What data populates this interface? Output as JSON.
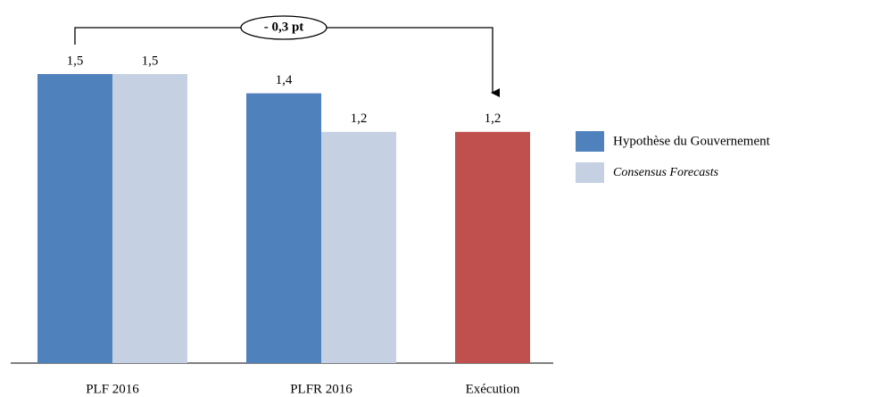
{
  "chart_data": {
    "type": "bar",
    "categories": [
      "PLF 2016",
      "PLFR 2016",
      "Exécution"
    ],
    "series": [
      {
        "name": "Hypothèse du Gouvernement",
        "color": "#4f81bd",
        "values": [
          1.5,
          1.4,
          null
        ],
        "value_labels": [
          "1,5",
          "1,4",
          null
        ]
      },
      {
        "name": "Consensus Forecasts",
        "color": "#c5d0e3",
        "values": [
          1.5,
          1.2,
          null
        ],
        "value_labels": [
          "1,5",
          "1,2",
          null
        ]
      }
    ],
    "execution": {
      "value": 1.2,
      "value_label": "1,2",
      "color": "#c0504d"
    },
    "annotation": "- 0,3 pt",
    "legend": "right"
  }
}
